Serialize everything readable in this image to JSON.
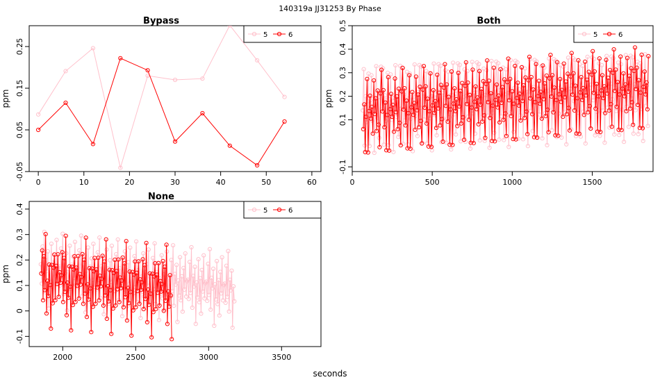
{
  "figure": {
    "title": "140319a   JJ31253   By Phase",
    "xlabel": "seconds"
  },
  "colors": {
    "series_5": "#ffc0cb",
    "series_6": "#ff0000",
    "axis": "#000000"
  },
  "chart_data": [
    {
      "type": "line",
      "title": "Bypass",
      "ylabel": "ppm",
      "xlim": [
        -2,
        62
      ],
      "ylim": [
        -0.05,
        0.3
      ],
      "xticks": [
        0,
        10,
        20,
        30,
        40,
        50,
        60
      ],
      "yticks": [
        -0.05,
        0.05,
        0.15,
        0.25
      ],
      "legend": {
        "position": "top-right",
        "entries": [
          "5",
          "6"
        ]
      },
      "series": [
        {
          "name": "5",
          "x": [
            0,
            6,
            12,
            18,
            24,
            30,
            36,
            42,
            48,
            54
          ],
          "y": [
            0.087,
            0.191,
            0.246,
            -0.041,
            0.18,
            0.17,
            0.173,
            0.301,
            0.217,
            0.129
          ]
        },
        {
          "name": "6",
          "x": [
            0,
            6,
            12,
            18,
            24,
            30,
            36,
            42,
            48,
            54
          ],
          "y": [
            0.05,
            0.115,
            0.016,
            0.222,
            0.193,
            0.022,
            0.09,
            0.012,
            -0.035,
            0.07
          ]
        }
      ]
    },
    {
      "type": "line",
      "title": "Both",
      "ylabel": "ppm",
      "xlim": [
        0,
        1880
      ],
      "ylim": [
        -0.12,
        0.5
      ],
      "xticks": [
        0,
        500,
        1000,
        1500
      ],
      "yticks": [
        -0.1,
        0.1,
        0.2,
        0.3,
        0.4,
        0.5
      ],
      "legend": {
        "position": "top-right",
        "entries": [
          "5",
          "6"
        ]
      },
      "series": [
        {
          "name": "5",
          "x_start": 66,
          "x_step": 6,
          "pattern": [
            0.1,
            0.35,
            -0.02,
            0.22,
            0.05,
            0.16,
            0.3,
            0.0,
            0.12,
            0.25,
            0.07,
            0.19,
            -0.05,
            0.14,
            0.28,
            0.09,
            0.2,
            0.03,
            0.17,
            0.32
          ],
          "trend_per_1000s": 0.03,
          "count": 298
        },
        {
          "name": "6",
          "x_start": 69,
          "x_step": 6,
          "pattern": [
            0.03,
            0.2,
            -0.03,
            0.14,
            0.27,
            -0.08,
            0.1,
            0.22,
            0.05,
            0.17,
            -0.02,
            0.31,
            0.08,
            0.19,
            0.0,
            0.24,
            0.11,
            -0.05,
            0.16,
            0.28,
            0.06,
            0.21
          ],
          "trend_per_1000s": 0.06,
          "count": 298
        }
      ]
    },
    {
      "type": "line",
      "title": "None",
      "ylabel": "ppm",
      "xlim": [
        1770,
        3770
      ],
      "ylim": [
        -0.14,
        0.43
      ],
      "xticks": [
        2000,
        2500,
        3000,
        3500
      ],
      "yticks": [
        -0.1,
        0.0,
        0.1,
        0.2,
        0.3,
        0.4
      ],
      "legend": {
        "position": "top-right",
        "entries": [
          "5",
          "6"
        ]
      },
      "series": [
        {
          "name": "5",
          "x_start": 1850,
          "x_step": 6,
          "pattern": [
            0.18,
            0.08,
            0.26,
            0.12,
            0.32,
            0.05,
            0.2,
            0.14,
            0.24,
            -0.02,
            0.16,
            0.1,
            0.28,
            0.07,
            0.19,
            0.03,
            0.22,
            0.13,
            0.3,
            0.09,
            0.17
          ],
          "trend_per_1000s": -0.06,
          "count": 222
        },
        {
          "name": "6",
          "x_start": 1853,
          "x_step": 6,
          "pattern": [
            0.12,
            0.25,
            0.0,
            0.18,
            0.08,
            0.28,
            -0.03,
            0.15,
            0.06,
            0.22,
            0.1,
            -0.06,
            0.19,
            0.04,
            0.14,
            0.26,
            0.02,
            0.17,
            0.09,
            0.23,
            -0.01,
            0.13,
            0.07
          ],
          "trend_per_1000s": -0.05,
          "count": 150
        }
      ]
    }
  ]
}
